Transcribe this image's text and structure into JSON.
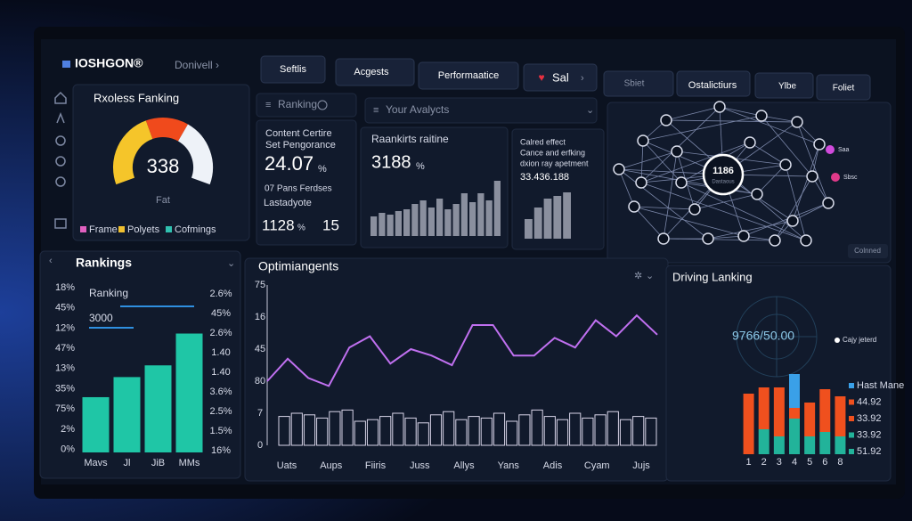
{
  "header": {
    "logo": "IOSHGON®",
    "user": "Donivell ›",
    "tabs": [
      "Seftlis",
      "Acgests",
      "Performaatice",
      "Sal"
    ],
    "right_tabs": [
      "Sbiet",
      "Ostalictiurs",
      "Ylbe",
      "Foliet"
    ]
  },
  "gauge_panel": {
    "title": "Rxoless Fanking",
    "value": "338",
    "label": "Fat",
    "legend": [
      {
        "name": "Frame",
        "color": "#e060c0"
      },
      {
        "name": "Polyets",
        "color": "#f0c030"
      },
      {
        "name": "Cofmings",
        "color": "#30c0b0"
      }
    ]
  },
  "ranking_panel": {
    "title": "Ranking",
    "lines": [
      "Content Certire",
      "Set Pengorance"
    ],
    "value": "24.07",
    "unit": "%",
    "sub": [
      "07 Pans Ferdses",
      "Lastadyote"
    ],
    "stat1": "1128",
    "stat1_unit": "%",
    "stat2": "15"
  },
  "analytics_panel": {
    "title": "Your Avalycts",
    "subtitle": "Raankirts raitine",
    "value": "3188",
    "unit": "%",
    "chart": {
      "type": "bar",
      "values": [
        22,
        26,
        24,
        28,
        30,
        36,
        40,
        32,
        42,
        30,
        36,
        48,
        38,
        48,
        40,
        62
      ],
      "ylim": [
        0,
        70
      ],
      "color": "#8a8f9e"
    }
  },
  "effect_panel": {
    "lines": [
      "Calred effect",
      "Cance and erfking",
      "dxion ray apetment"
    ],
    "value": "33.436.188",
    "chart": {
      "type": "bar",
      "values": [
        22,
        35,
        45,
        48,
        52
      ],
      "ylim": [
        0,
        60
      ],
      "color": "#8a8f9e"
    }
  },
  "network_panel": {
    "center": "1186",
    "center_sub": "Dastaous",
    "button": "Colnned",
    "legend": [
      "Saa",
      "Sbsc"
    ]
  },
  "rankings_chart": {
    "type": "bar",
    "title": "Rankings",
    "legend": [
      "Ranking",
      "3000"
    ],
    "left_labels": [
      "18%",
      "45%",
      "12%",
      "47%",
      "13%",
      "35%",
      "75%",
      "2%",
      "0%"
    ],
    "right_labels": [
      "2.6%",
      "45%",
      "2.6%",
      "1.40",
      "1.40",
      "3.6%",
      "2.5%",
      "1.5%",
      "16%"
    ],
    "categories": [
      "Mavs",
      "Jl",
      "JiB",
      "MMs"
    ],
    "values": [
      33,
      45,
      52,
      71
    ],
    "ylim": [
      0,
      100
    ],
    "color": "#1fc6a6"
  },
  "optimization_chart": {
    "type": "line",
    "title": "Optimiangents",
    "y_labels": [
      "75",
      "16",
      "45",
      "80",
      "7",
      "0"
    ],
    "categories": [
      "Uats",
      "Aups",
      "Fiiris",
      "Juss",
      "Allys",
      "Yans",
      "Adis",
      "Cyam",
      "Jujs"
    ],
    "values": [
      40,
      54,
      42,
      37,
      61,
      68,
      51,
      60,
      56,
      50,
      75,
      75,
      56,
      56,
      67,
      61,
      78,
      68,
      81,
      69
    ],
    "bars": [
      18,
      20,
      19,
      17,
      21,
      22,
      15,
      16,
      18,
      20,
      17,
      14,
      19,
      21,
      16,
      18,
      17,
      20,
      15,
      19,
      22,
      18,
      16,
      20,
      17,
      19,
      21,
      16,
      18,
      17
    ],
    "ylim": [
      0,
      100
    ],
    "color": "#c070f0",
    "bar_color": "#d8d4e8"
  },
  "driving_chart": {
    "type": "stacked-bar",
    "title": "Driving Lanking",
    "readout": "9766/50.00",
    "note": "Cajy jeterd",
    "categories": [
      "1",
      "2",
      "3",
      "4",
      "5",
      "6",
      "8"
    ],
    "series": [
      {
        "color": "#22b39a",
        "values": [
          0,
          28,
          20,
          40,
          20,
          25,
          20
        ]
      },
      {
        "color": "#f0501e",
        "values": [
          68,
          47,
          55,
          12,
          38,
          48,
          45
        ]
      },
      {
        "color": "#3aa0e8",
        "values": [
          0,
          0,
          0,
          38,
          0,
          0,
          0
        ]
      }
    ],
    "ylim": [
      0,
      90
    ],
    "legend": [
      {
        "name": "Hast Mane",
        "color": "#3aa0e8"
      },
      {
        "name": "44.92",
        "color": "#f0501e"
      },
      {
        "name": "33.92",
        "color": "#f0501e"
      },
      {
        "name": "33.92",
        "color": "#22b39a"
      },
      {
        "name": "51.92",
        "color": "#22b39a"
      }
    ]
  }
}
